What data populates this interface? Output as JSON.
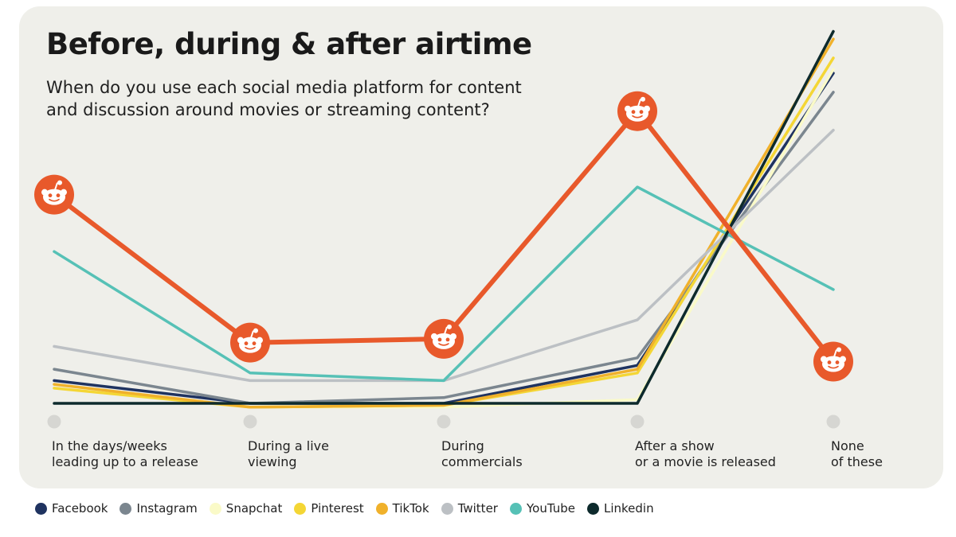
{
  "header": {
    "title": "Before, during & after airtime",
    "subtitle": "When do you use each social media platform for content and discussion around movies or streaming content?"
  },
  "chart_data": {
    "type": "line",
    "title": "Before, during & after airtime",
    "subtitle": "When do you use each social media platform for content and discussion around movies or streaming content?",
    "categories": [
      [
        "In the days/weeks",
        "leading up to a release"
      ],
      [
        "During a live",
        "viewing"
      ],
      [
        "During",
        "commercials"
      ],
      [
        "After a show",
        "or a movie is released"
      ],
      [
        "None",
        "of these"
      ]
    ],
    "y_axis_visible": false,
    "ylim": [
      0,
      100
    ],
    "grid": false,
    "legend_position": "bottom-left",
    "highlight_series": "Reddit",
    "highlight_marker": "reddit-icon",
    "series": [
      {
        "name": "Facebook",
        "color": "#1f3360",
        "values": [
          6,
          0,
          0,
          10,
          87
        ]
      },
      {
        "name": "Instagram",
        "color": "#7b868f",
        "values": [
          9,
          0,
          1.5,
          12,
          82
        ]
      },
      {
        "name": "Snapchat",
        "color": "#fafac8",
        "values": [
          5,
          -1,
          -1,
          1,
          88
        ]
      },
      {
        "name": "Pinterest",
        "color": "#f4d635",
        "values": [
          4,
          -1,
          -0.5,
          8,
          91
        ]
      },
      {
        "name": "TikTok",
        "color": "#f0b12b",
        "values": [
          5,
          -1,
          -0.5,
          9,
          96
        ]
      },
      {
        "name": "Twitter",
        "color": "#bcc0c4",
        "values": [
          15,
          6,
          6,
          22,
          72
        ]
      },
      {
        "name": "YouTube",
        "color": "#56c1b6",
        "values": [
          40,
          8,
          6,
          57,
          30
        ]
      },
      {
        "name": "Linkedin",
        "color": "#0d2a2c",
        "values": [
          0,
          0,
          0,
          0,
          98
        ]
      },
      {
        "name": "",
        "color": "#e8592b",
        "values": [
          55,
          16,
          17,
          77,
          11
        ]
      }
    ]
  },
  "legend": [
    {
      "label": "Facebook",
      "color": "#1f3360"
    },
    {
      "label": "Instagram",
      "color": "#7b868f"
    },
    {
      "label": "Snapchat",
      "color": "#fafac8"
    },
    {
      "label": "Pinterest",
      "color": "#f4d635"
    },
    {
      "label": "TikTok",
      "color": "#f0b12b"
    },
    {
      "label": "Twitter",
      "color": "#bcc0c4"
    },
    {
      "label": "YouTube",
      "color": "#56c1b6"
    },
    {
      "label": "Linkedin",
      "color": "#0d2a2c"
    }
  ],
  "colors": {
    "card_background": "#efefea",
    "category_dot": "#d6d6d2",
    "reddit_accent": "#e8592b"
  }
}
